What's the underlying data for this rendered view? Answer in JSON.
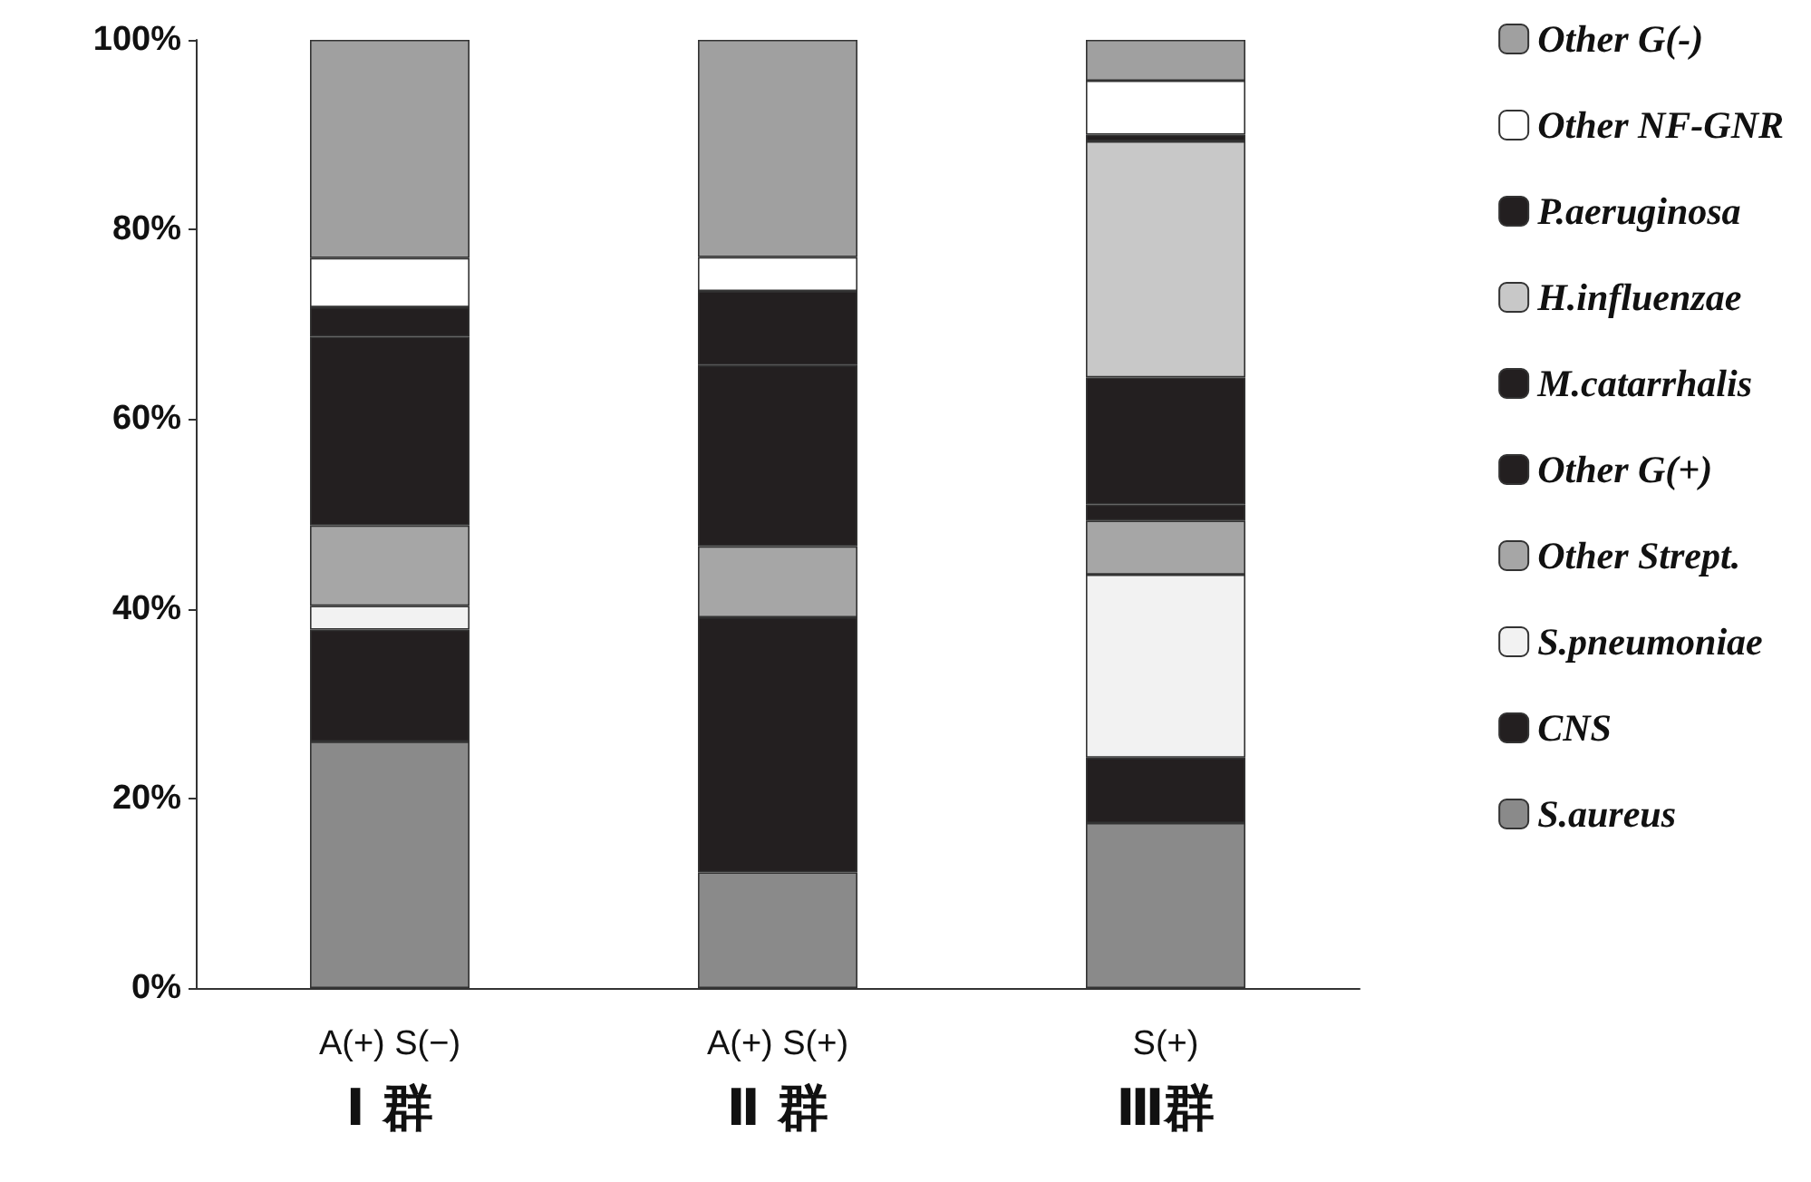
{
  "chart_data": {
    "type": "bar",
    "stacked": true,
    "categories": [
      "A(+) S(−)\nⅠ 群",
      "A(+) S(+)\nⅡ 群",
      "S(+)\nⅢ群"
    ],
    "series": [
      {
        "name": "S.aureus",
        "color": "#8a8a8a",
        "values": [
          26,
          12.2,
          17.4
        ]
      },
      {
        "name": "CNS",
        "color": "#231f20",
        "values": [
          11.8,
          26.9,
          6.9
        ]
      },
      {
        "name": "S.pneumoniae",
        "color": "#f2f2f2",
        "values": [
          2.5,
          0,
          19.3
        ]
      },
      {
        "name": "Other Strept.",
        "color": "#a6a6a6",
        "values": [
          8.5,
          7.5,
          5.7
        ]
      },
      {
        "name": "Other G(+)",
        "color": "#231f20",
        "values": [
          19.9,
          19.1,
          1.7
        ]
      },
      {
        "name": "M.catarrhalis",
        "color": "#231f20",
        "values": [
          3.1,
          7.8,
          13.4
        ]
      },
      {
        "name": "H.influenzae",
        "color": "#c8c8c8",
        "values": [
          0,
          0,
          24.9
        ]
      },
      {
        "name": "P.aeruginosa",
        "color": "#231f20",
        "values": [
          0,
          0,
          0.7
        ]
      },
      {
        "name": "Other NF-GNR",
        "color": "#ffffff",
        "values": [
          5.2,
          3.6,
          5.7
        ]
      },
      {
        "name": "Other G(-)",
        "color": "#a0a0a0",
        "values": [
          23,
          22.9,
          4.3
        ]
      }
    ],
    "ylim": [
      0,
      100
    ],
    "yticks": [
      {
        "value": 0,
        "label": "0%"
      },
      {
        "value": 20,
        "label": "20%"
      },
      {
        "value": 40,
        "label": "40%"
      },
      {
        "value": 60,
        "label": "60%"
      },
      {
        "value": 80,
        "label": "80%"
      },
      {
        "value": 100,
        "label": "100%"
      }
    ],
    "grid": false,
    "legend": "right"
  }
}
